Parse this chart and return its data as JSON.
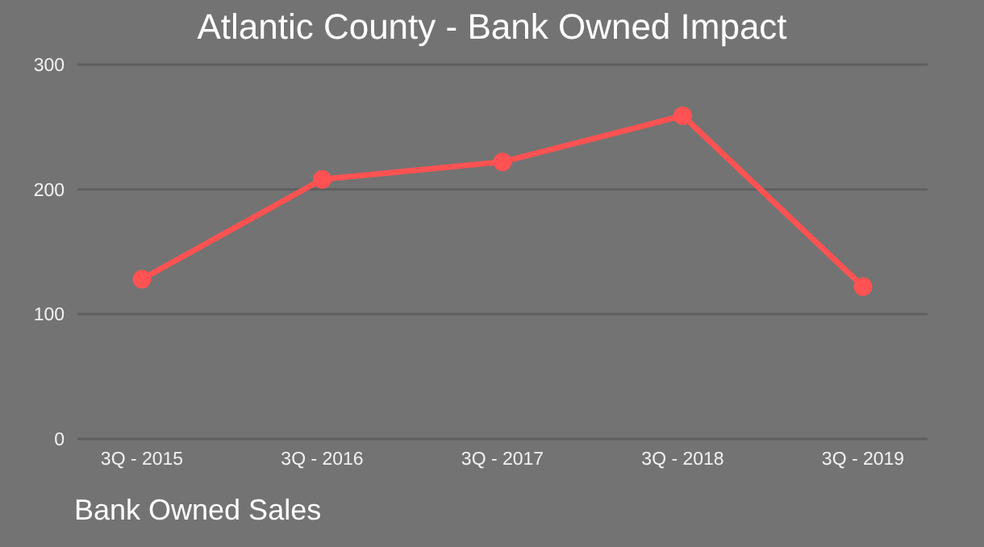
{
  "chart_data": {
    "type": "line",
    "title": "Atlantic County - Bank Owned Impact",
    "categories": [
      "3Q - 2015",
      "3Q - 2016",
      "3Q - 2017",
      "3Q - 2018",
      "3Q - 2019"
    ],
    "series": [
      {
        "color": "#ff5252",
        "values": [
          128,
          208,
          222,
          259,
          122
        ]
      }
    ],
    "ylim": [
      0,
      300
    ],
    "yticks": [
      0,
      100,
      200,
      300
    ],
    "grid": "y",
    "marker": "circle",
    "line_style": "solid",
    "annotations": [
      "Bank Owned Sales"
    ]
  }
}
